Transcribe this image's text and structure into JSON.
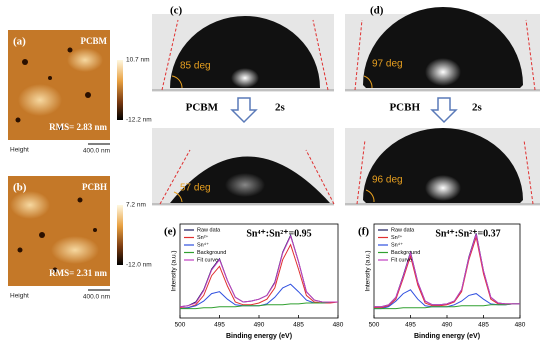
{
  "panels": {
    "a": {
      "label": "(a)",
      "material": "PCBM",
      "rms": "RMS= 2.83 nm",
      "scale_max": "10.7 nm",
      "scale_min": "-12.2 nm",
      "channel": "Height",
      "scalebar": "400.0 nm"
    },
    "b": {
      "label": "(b)",
      "material": "PCBH",
      "rms": "RMS= 2.31 nm",
      "scale_max": "7.2 nm",
      "scale_min": "-12.0 nm",
      "channel": "Height",
      "scalebar": "400.0 nm"
    },
    "c": {
      "label": "(c)",
      "angle_before": "85 deg",
      "material": "PCBM",
      "time": "2s",
      "angle_after": "57 deg"
    },
    "d": {
      "label": "(d)",
      "angle_before": "97 deg",
      "material": "PCBH",
      "time": "2s",
      "angle_after": "96 deg"
    }
  },
  "chart_data": [
    {
      "type": "line",
      "label": "(e)",
      "annotation": "Sn⁴⁺:Sn²⁺=0.95",
      "x_label": "Binding energy (eV)",
      "y_label": "Intensity (a.u.)",
      "x": [
        500,
        499,
        498,
        497,
        496,
        495,
        494,
        493,
        492,
        491,
        490,
        489,
        488,
        487,
        486,
        485,
        484,
        483,
        482,
        481,
        480
      ],
      "xlim": [
        500,
        480
      ],
      "xticks": [
        500,
        495,
        490,
        485,
        480
      ],
      "ylim": [
        0,
        100
      ],
      "legend": "upper left",
      "series": [
        {
          "name": "Raw data",
          "color": "#1a1a5e",
          "values": [
            12,
            13,
            17,
            30,
            52,
            63,
            40,
            22,
            17,
            18,
            20,
            24,
            38,
            70,
            88,
            60,
            28,
            19,
            17,
            17,
            17
          ]
        },
        {
          "name": "Sn²⁺",
          "color": "#e03030",
          "values": [
            11,
            11,
            14,
            24,
            45,
            55,
            34,
            17,
            14,
            14,
            16,
            20,
            32,
            62,
            78,
            52,
            24,
            17,
            16,
            16,
            17
          ]
        },
        {
          "name": "Sn⁴⁺",
          "color": "#3050e0",
          "values": [
            10,
            11,
            13,
            18,
            26,
            28,
            20,
            14,
            13,
            13,
            13,
            15,
            22,
            32,
            36,
            28,
            19,
            16,
            16,
            17,
            17
          ]
        },
        {
          "name": "Background",
          "color": "#30a030",
          "values": [
            10,
            10,
            10,
            11,
            11,
            12,
            12,
            12,
            13,
            13,
            13,
            14,
            14,
            14,
            15,
            15,
            16,
            16,
            16,
            17,
            17
          ]
        },
        {
          "name": "Fit curve",
          "color": "#c040c0",
          "values": [
            12,
            13,
            16,
            29,
            51,
            62,
            40,
            22,
            17,
            18,
            20,
            24,
            37,
            69,
            87,
            60,
            28,
            19,
            17,
            17,
            17
          ]
        }
      ]
    },
    {
      "type": "line",
      "label": "(f)",
      "annotation": "Sn⁴⁺:Sn²⁺=0.37",
      "x_label": "Binding energy (eV)",
      "y_label": "Intensity (a.u.)",
      "x": [
        500,
        499,
        498,
        497,
        496,
        495,
        494,
        493,
        492,
        491,
        490,
        489,
        488,
        487,
        486,
        485,
        484,
        483,
        482,
        481,
        480
      ],
      "xlim": [
        500,
        480
      ],
      "xticks": [
        500,
        495,
        490,
        485,
        480
      ],
      "ylim": [
        0,
        100
      ],
      "legend": "upper left",
      "series": [
        {
          "name": "Raw data",
          "color": "#1a1a5e",
          "values": [
            12,
            12,
            14,
            22,
            45,
            70,
            38,
            18,
            14,
            14,
            15,
            18,
            30,
            65,
            90,
            50,
            22,
            16,
            15,
            15,
            15
          ]
        },
        {
          "name": "Sn²⁺",
          "color": "#e03030",
          "values": [
            11,
            11,
            13,
            20,
            42,
            66,
            35,
            16,
            13,
            13,
            14,
            17,
            28,
            62,
            86,
            47,
            20,
            15,
            15,
            15,
            15
          ]
        },
        {
          "name": "Sn⁴⁺",
          "color": "#3050e0",
          "values": [
            10,
            10,
            12,
            18,
            26,
            30,
            20,
            13,
            12,
            12,
            12,
            14,
            18,
            24,
            26,
            20,
            15,
            14,
            14,
            15,
            15
          ]
        },
        {
          "name": "Background",
          "color": "#30a030",
          "values": [
            10,
            10,
            10,
            10,
            11,
            11,
            11,
            11,
            12,
            12,
            12,
            12,
            13,
            13,
            13,
            13,
            14,
            14,
            14,
            15,
            15
          ]
        },
        {
          "name": "Fit curve",
          "color": "#c040c0",
          "values": [
            12,
            12,
            14,
            22,
            44,
            69,
            38,
            18,
            14,
            14,
            15,
            18,
            30,
            64,
            89,
            50,
            22,
            16,
            15,
            15,
            15
          ]
        }
      ]
    }
  ]
}
